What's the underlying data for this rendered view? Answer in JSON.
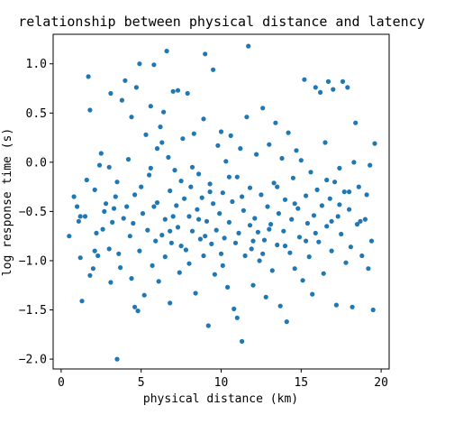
{
  "chart_data": {
    "type": "scatter",
    "title": "relationship between physical distance and latency",
    "xlabel": "physical distance (km)",
    "ylabel": "log response time (s)",
    "xlim": [
      -0.5,
      20.5
    ],
    "ylim": [
      -2.1,
      1.3
    ],
    "xticks": [
      0,
      5,
      10,
      15,
      20
    ],
    "xtick_labels": [
      "0",
      "5",
      "10",
      "15",
      "20"
    ],
    "yticks": [
      -2.0,
      -1.5,
      -1.0,
      -0.5,
      0.0,
      0.5,
      1.0
    ],
    "ytick_labels": [
      "−2.0",
      "−1.5",
      "−1.0",
      "−0.5",
      "0.0",
      "0.5",
      "1.0"
    ],
    "grid": false,
    "legend": "none",
    "color": "#1f77b4",
    "points": [
      [
        0.5,
        -0.75
      ],
      [
        0.8,
        -0.35
      ],
      [
        1.0,
        -0.45
      ],
      [
        1.1,
        -0.6
      ],
      [
        1.2,
        -0.97
      ],
      [
        1.3,
        -1.41
      ],
      [
        1.5,
        -0.55
      ],
      [
        1.6,
        -0.18
      ],
      [
        1.7,
        0.87
      ],
      [
        1.8,
        0.53
      ],
      [
        1.8,
        -1.15
      ],
      [
        2.0,
        -1.08
      ],
      [
        2.1,
        -0.28
      ],
      [
        2.2,
        -0.72
      ],
      [
        2.3,
        -0.95
      ],
      [
        2.4,
        -0.03
      ],
      [
        2.5,
        0.09
      ],
      [
        2.6,
        -0.68
      ],
      [
        2.7,
        -0.5
      ],
      [
        2.8,
        -0.42
      ],
      [
        3.0,
        -0.88
      ],
      [
        3.1,
        -1.22
      ],
      [
        3.1,
        0.7
      ],
      [
        3.2,
        -0.61
      ],
      [
        3.3,
        -0.47
      ],
      [
        3.4,
        -0.35
      ],
      [
        3.5,
        -0.2
      ],
      [
        3.5,
        -2.0
      ],
      [
        3.6,
        -0.93
      ],
      [
        3.7,
        -1.07
      ],
      [
        3.8,
        0.63
      ],
      [
        3.9,
        -0.57
      ],
      [
        4.0,
        0.83
      ],
      [
        4.1,
        -0.45
      ],
      [
        4.2,
        0.03
      ],
      [
        4.3,
        -0.75
      ],
      [
        4.4,
        0.46
      ],
      [
        4.5,
        -0.62
      ],
      [
        4.6,
        -0.33
      ],
      [
        4.6,
        -1.47
      ],
      [
        4.7,
        0.76
      ],
      [
        4.8,
        -1.51
      ],
      [
        4.9,
        -0.9
      ],
      [
        4.9,
        1.0
      ],
      [
        5.0,
        -0.25
      ],
      [
        5.1,
        -0.52
      ],
      [
        5.2,
        -1.35
      ],
      [
        5.3,
        0.28
      ],
      [
        5.4,
        -0.69
      ],
      [
        5.5,
        -0.13
      ],
      [
        5.6,
        0.57
      ],
      [
        5.7,
        -1.05
      ],
      [
        5.8,
        0.99
      ],
      [
        5.9,
        -0.8
      ],
      [
        6.0,
        -0.41
      ],
      [
        6.0,
        0.14
      ],
      [
        6.1,
        -1.21
      ],
      [
        6.2,
        0.36
      ],
      [
        6.3,
        -0.74
      ],
      [
        6.4,
        0.51
      ],
      [
        6.5,
        -0.58
      ],
      [
        6.5,
        -0.96
      ],
      [
        6.6,
        1.13
      ],
      [
        6.7,
        0.05
      ],
      [
        6.8,
        -0.29
      ],
      [
        6.8,
        -1.43
      ],
      [
        6.9,
        -0.82
      ],
      [
        7.0,
        0.72
      ],
      [
        7.1,
        -0.08
      ],
      [
        7.2,
        -0.44
      ],
      [
        7.3,
        -0.66
      ],
      [
        7.3,
        0.73
      ],
      [
        7.4,
        -1.12
      ],
      [
        7.5,
        -0.19
      ],
      [
        7.6,
        0.24
      ],
      [
        7.7,
        -0.37
      ],
      [
        7.8,
        -0.89
      ],
      [
        7.9,
        0.7
      ],
      [
        8.0,
        -0.55
      ],
      [
        8.0,
        -1.03
      ],
      [
        8.1,
        -0.25
      ],
      [
        8.2,
        -0.7
      ],
      [
        8.3,
        0.29
      ],
      [
        8.4,
        -1.33
      ],
      [
        8.5,
        -0.48
      ],
      [
        8.6,
        -0.12
      ],
      [
        8.7,
        -0.78
      ],
      [
        8.8,
        -0.36
      ],
      [
        8.9,
        0.44
      ],
      [
        8.9,
        -0.95
      ],
      [
        9.0,
        1.1
      ],
      [
        9.1,
        -0.6
      ],
      [
        9.2,
        -1.66
      ],
      [
        9.3,
        -0.22
      ],
      [
        9.4,
        -0.83
      ],
      [
        9.5,
        0.94
      ],
      [
        9.5,
        -0.42
      ],
      [
        9.6,
        -1.14
      ],
      [
        9.7,
        -0.69
      ],
      [
        9.8,
        0.17
      ],
      [
        9.9,
        -0.52
      ],
      [
        10.0,
        0.31
      ],
      [
        10.0,
        -0.93
      ],
      [
        10.1,
        -0.31
      ],
      [
        10.2,
        -0.77
      ],
      [
        10.3,
        0.01
      ],
      [
        10.4,
        -1.27
      ],
      [
        10.5,
        -0.61
      ],
      [
        10.6,
        0.27
      ],
      [
        10.7,
        -0.4
      ],
      [
        10.8,
        -1.49
      ],
      [
        10.9,
        -0.82
      ],
      [
        11.0,
        -0.15
      ],
      [
        11.0,
        -1.58
      ],
      [
        11.1,
        -0.72
      ],
      [
        11.2,
        0.14
      ],
      [
        11.3,
        -1.82
      ],
      [
        11.4,
        -0.49
      ],
      [
        11.5,
        -0.95
      ],
      [
        11.6,
        0.46
      ],
      [
        11.7,
        1.18
      ],
      [
        11.8,
        -0.26
      ],
      [
        11.9,
        -0.88
      ],
      [
        12.0,
        -1.25
      ],
      [
        12.1,
        -0.57
      ],
      [
        12.2,
        0.08
      ],
      [
        12.3,
        -0.71
      ],
      [
        12.4,
        -1.0
      ],
      [
        12.5,
        -0.33
      ],
      [
        12.6,
        0.55
      ],
      [
        12.7,
        -0.79
      ],
      [
        12.8,
        -1.37
      ],
      [
        12.9,
        -0.45
      ],
      [
        13.0,
        0.18
      ],
      [
        13.1,
        -0.63
      ],
      [
        13.2,
        -1.1
      ],
      [
        13.3,
        -0.21
      ],
      [
        13.4,
        0.4
      ],
      [
        13.5,
        -0.84
      ],
      [
        13.6,
        -0.52
      ],
      [
        13.7,
        -1.46
      ],
      [
        13.8,
        0.04
      ],
      [
        13.9,
        -0.7
      ],
      [
        14.0,
        -0.38
      ],
      [
        14.1,
        -1.62
      ],
      [
        14.2,
        0.3
      ],
      [
        14.3,
        -0.92
      ],
      [
        14.4,
        -0.58
      ],
      [
        14.5,
        -0.16
      ],
      [
        14.6,
        -1.08
      ],
      [
        14.7,
        0.12
      ],
      [
        14.8,
        -0.47
      ],
      [
        14.9,
        -0.76
      ],
      [
        15.0,
        0.02
      ],
      [
        15.1,
        -1.2
      ],
      [
        15.2,
        0.84
      ],
      [
        15.3,
        -0.34
      ],
      [
        15.4,
        -0.62
      ],
      [
        15.5,
        -0.96
      ],
      [
        15.6,
        -0.1
      ],
      [
        15.7,
        -1.34
      ],
      [
        15.8,
        -0.54
      ],
      [
        15.9,
        0.76
      ],
      [
        16.0,
        -0.28
      ],
      [
        16.1,
        -0.81
      ],
      [
        16.2,
        0.71
      ],
      [
        16.3,
        -0.44
      ],
      [
        16.4,
        -1.13
      ],
      [
        16.5,
        0.2
      ],
      [
        16.6,
        -0.65
      ],
      [
        16.7,
        0.82
      ],
      [
        16.8,
        -0.37
      ],
      [
        16.9,
        -0.9
      ],
      [
        17.0,
        0.74
      ],
      [
        17.1,
        -0.2
      ],
      [
        17.2,
        -1.45
      ],
      [
        17.3,
        -0.55
      ],
      [
        17.4,
        -0.06
      ],
      [
        17.5,
        -0.73
      ],
      [
        17.6,
        0.82
      ],
      [
        17.7,
        -0.3
      ],
      [
        17.8,
        -1.02
      ],
      [
        17.9,
        0.76
      ],
      [
        18.0,
        -0.48
      ],
      [
        18.1,
        -0.86
      ],
      [
        18.2,
        -1.47
      ],
      [
        18.3,
        0.0
      ],
      [
        18.4,
        0.4
      ],
      [
        18.5,
        -0.63
      ],
      [
        18.6,
        -0.25
      ],
      [
        18.8,
        -0.95
      ],
      [
        19.0,
        -0.58
      ],
      [
        19.1,
        -0.33
      ],
      [
        19.2,
        -1.08
      ],
      [
        19.3,
        -0.03
      ],
      [
        19.4,
        -0.8
      ],
      [
        19.5,
        -1.5
      ],
      [
        19.6,
        0.19
      ],
      [
        5.6,
        -0.06
      ],
      [
        6.3,
        0.2
      ],
      [
        7.0,
        -0.55
      ],
      [
        8.2,
        -0.05
      ],
      [
        9.3,
        -0.3
      ],
      [
        10.5,
        -0.15
      ],
      [
        11.8,
        -0.64
      ],
      [
        12.6,
        -0.93
      ],
      [
        13.5,
        -0.25
      ],
      [
        14.6,
        -0.42
      ],
      [
        15.9,
        -0.72
      ],
      [
        16.6,
        -0.18
      ],
      [
        17.4,
        -0.43
      ],
      [
        18.7,
        -0.6
      ],
      [
        4.4,
        -1.18
      ],
      [
        3.0,
        -0.05
      ],
      [
        2.1,
        -0.9
      ],
      [
        1.2,
        -0.55
      ],
      [
        6.8,
        -0.7
      ],
      [
        8.6,
        -0.58
      ],
      [
        10.1,
        -1.05
      ],
      [
        11.3,
        -0.35
      ],
      [
        12.0,
        -0.8
      ],
      [
        13.0,
        -0.68
      ],
      [
        14.0,
        -0.85
      ],
      [
        15.3,
        -0.8
      ],
      [
        16.9,
        -0.6
      ],
      [
        18.0,
        -0.3
      ],
      [
        9.0,
        -0.75
      ],
      [
        7.5,
        -0.85
      ],
      [
        5.8,
        -0.45
      ]
    ]
  }
}
